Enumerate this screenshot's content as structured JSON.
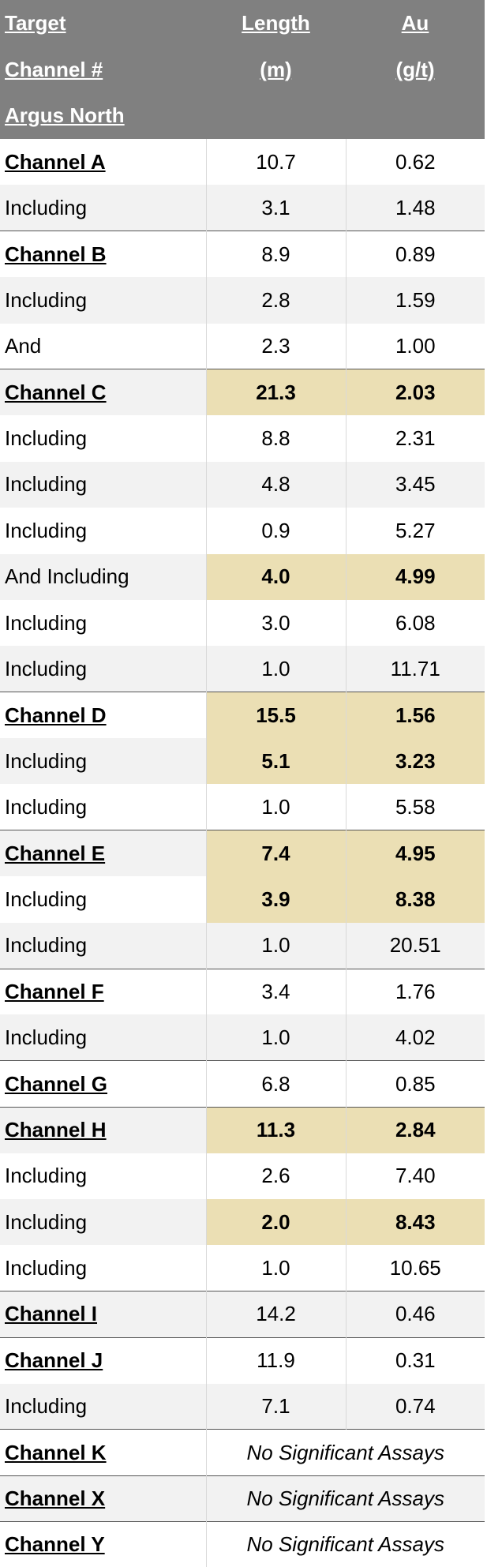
{
  "header": {
    "columns": [
      [
        "Target",
        "Channel #",
        "Argus North"
      ],
      [
        "Length",
        "(m)"
      ],
      [
        "Au",
        "(g/t)"
      ]
    ]
  },
  "table": {
    "rows": [
      {
        "label": "Channel A",
        "length": "10.7",
        "au": "0.62"
      },
      {
        "label": "Including",
        "length": "3.1",
        "au": "1.48"
      },
      {
        "label": "Channel B",
        "length": "8.9",
        "au": "0.89"
      },
      {
        "label": "Including",
        "length": "2.8",
        "au": "1.59"
      },
      {
        "label": "And",
        "length": "2.3",
        "au": "1.00"
      },
      {
        "label": "Channel C",
        "length": "21.3",
        "au": "2.03",
        "highlight": true
      },
      {
        "label": "Including",
        "length": "8.8",
        "au": "2.31"
      },
      {
        "label": "Including",
        "length": "4.8",
        "au": "3.45"
      },
      {
        "label": "Including",
        "length": "0.9",
        "au": "5.27"
      },
      {
        "label": "And Including",
        "length": "4.0",
        "au": "4.99",
        "highlight": true
      },
      {
        "label": "Including",
        "length": "3.0",
        "au": "6.08"
      },
      {
        "label": "Including",
        "length": "1.0",
        "au": "11.71"
      },
      {
        "label": "Channel D",
        "length": "15.5",
        "au": "1.56",
        "highlight": true
      },
      {
        "label": "Including",
        "length": "5.1",
        "au": "3.23",
        "highlight": true
      },
      {
        "label": "Including",
        "length": "1.0",
        "au": "5.58"
      },
      {
        "label": "Channel E",
        "length": "7.4",
        "au": "4.95",
        "highlight": true
      },
      {
        "label": "Including",
        "length": "3.9",
        "au": "8.38",
        "highlight": true
      },
      {
        "label": "Including",
        "length": "1.0",
        "au": "20.51"
      },
      {
        "label": "Channel F",
        "length": "3.4",
        "au": "1.76"
      },
      {
        "label": "Including",
        "length": "1.0",
        "au": "4.02"
      },
      {
        "label": "Channel G",
        "length": "6.8",
        "au": "0.85"
      },
      {
        "label": "Channel H",
        "length": "11.3",
        "au": "2.84",
        "highlight": true
      },
      {
        "label": "Including",
        "length": "2.6",
        "au": "7.40"
      },
      {
        "label": "Including",
        "length": "2.0",
        "au": "8.43",
        "highlight": true
      },
      {
        "label": "Including",
        "length": "1.0",
        "au": "10.65"
      },
      {
        "label": "Channel I",
        "length": "14.2",
        "au": "0.46"
      },
      {
        "label": "Channel J",
        "length": "11.9",
        "au": "0.31"
      },
      {
        "label": "Including",
        "length": "7.1",
        "au": "0.74"
      },
      {
        "label": "Channel K",
        "note": "No Significant Assays"
      },
      {
        "label": "Channel X",
        "note": "No Significant Assays"
      },
      {
        "label": "Channel Y",
        "note": "No Significant Assays"
      }
    ]
  }
}
